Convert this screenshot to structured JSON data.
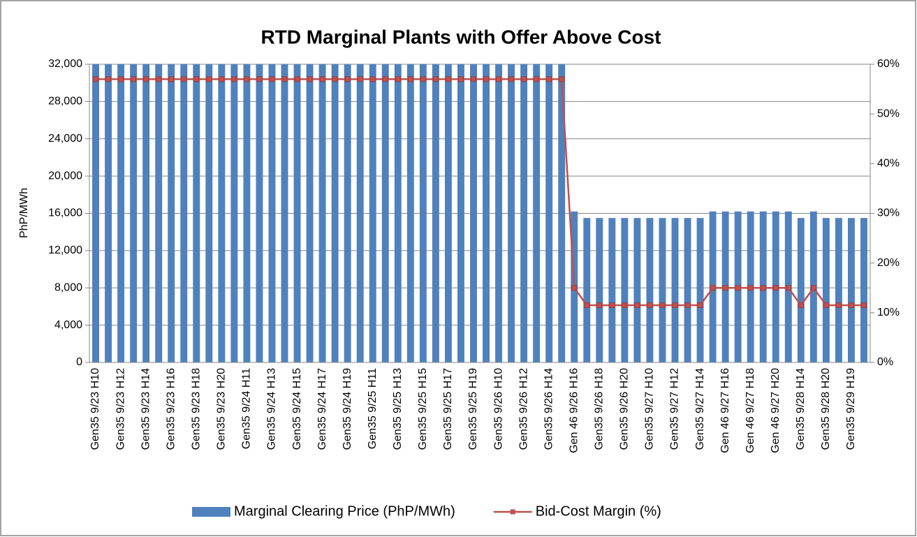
{
  "chart_data": {
    "type": "bar",
    "title": "RTD Marginal Plants with Offer Above Cost",
    "y_label": "PhP/MWh",
    "categories": [
      "Gen35 9/23 H10",
      null,
      "Gen35 9/23 H12",
      null,
      "Gen35 9/23 H14",
      null,
      "Gen35 9/23 H16",
      null,
      "Gen35 9/23 H18",
      null,
      "Gen35 9/23 H20",
      null,
      "Gen35 9/24 H11",
      null,
      "Gen35 9/24 H13",
      null,
      "Gen35 9/24 H15",
      null,
      "Gen35 9/24 H17",
      null,
      "Gen35 9/24 H19",
      null,
      "Gen35 9/25 H11",
      null,
      "Gen35 9/25 H13",
      null,
      "Gen35 9/25 H15",
      null,
      "Gen35 9/25 H17",
      null,
      "Gen35 9/25 H19",
      null,
      "Gen35 9/26 H10",
      null,
      "Gen35 9/26 H12",
      null,
      "Gen35 9/26 H14",
      null,
      "Gen 46 9/26 H16",
      null,
      "Gen35 9/26 H18",
      null,
      "Gen35 9/26 H20",
      null,
      "Gen35 9/27 H10",
      null,
      "Gen35 9/27 H12",
      null,
      "Gen35 9/27 H14",
      null,
      "Gen 46 9/27 H16",
      null,
      "Gen 46 9/27 H18",
      null,
      "Gen 46 9/27 H20",
      null,
      "Gen35 9/28 H14",
      null,
      "Gen35 9/28 H20",
      null,
      "Gen35 9/29 H19",
      null
    ],
    "series": [
      {
        "name": "Marginal Clearing Price (PhP/MWh)",
        "type": "bar",
        "color": "#4f81bd",
        "values": [
          32000,
          32000,
          32000,
          32000,
          32000,
          32000,
          32000,
          32000,
          32000,
          32000,
          32000,
          32000,
          32000,
          32000,
          32000,
          32000,
          32000,
          32000,
          32000,
          32000,
          32000,
          32000,
          32000,
          32000,
          32000,
          32000,
          32000,
          32000,
          32000,
          32000,
          32000,
          32000,
          32000,
          32000,
          32000,
          32000,
          32000,
          32000,
          16200,
          15500,
          15500,
          15500,
          15500,
          15500,
          15500,
          15500,
          15500,
          15500,
          15500,
          16200,
          16200,
          16200,
          16200,
          16200,
          16200,
          16200,
          15500,
          16200,
          15500,
          15500,
          15500,
          15500
        ]
      },
      {
        "name": "Bid-Cost Margin (%)",
        "type": "line",
        "axis": "y2",
        "color": "#c0504d",
        "values": [
          57,
          57,
          57,
          57,
          57,
          57,
          57,
          57,
          57,
          57,
          57,
          57,
          57,
          57,
          57,
          57,
          57,
          57,
          57,
          57,
          57,
          57,
          57,
          57,
          57,
          57,
          57,
          57,
          57,
          57,
          57,
          57,
          57,
          57,
          57,
          57,
          57,
          57,
          15,
          11.5,
          11.5,
          11.5,
          11.5,
          11.5,
          11.5,
          11.5,
          11.5,
          11.5,
          11.5,
          15,
          15,
          15,
          15,
          15,
          15,
          15,
          11.5,
          15,
          11.5,
          11.5,
          11.5,
          11.5
        ]
      }
    ],
    "ylim": [
      0,
      32000
    ],
    "yticks": [
      0,
      {
        "value": 4000,
        "label": "4,000"
      },
      {
        "value": 8000,
        "label": "8,000"
      },
      {
        "value": 12000,
        "label": "12,000"
      },
      {
        "value": 16000,
        "label": "16,000"
      },
      {
        "value": 20000,
        "label": "20,000"
      },
      {
        "value": 24000,
        "label": "24,000"
      },
      {
        "value": 28000,
        "label": "28,000"
      },
      {
        "value": 32000,
        "label": "32,000"
      }
    ],
    "y2lim": [
      0,
      60
    ],
    "y2ticks": [
      {
        "value": 0,
        "label": "0%"
      },
      {
        "value": 10,
        "label": "10%"
      },
      {
        "value": 20,
        "label": "20%"
      },
      {
        "value": 30,
        "label": "30%"
      },
      {
        "value": 40,
        "label": "40%"
      },
      {
        "value": 50,
        "label": "50%"
      },
      {
        "value": 60,
        "label": "60%"
      }
    ],
    "grid": true,
    "legend": "bottom"
  }
}
